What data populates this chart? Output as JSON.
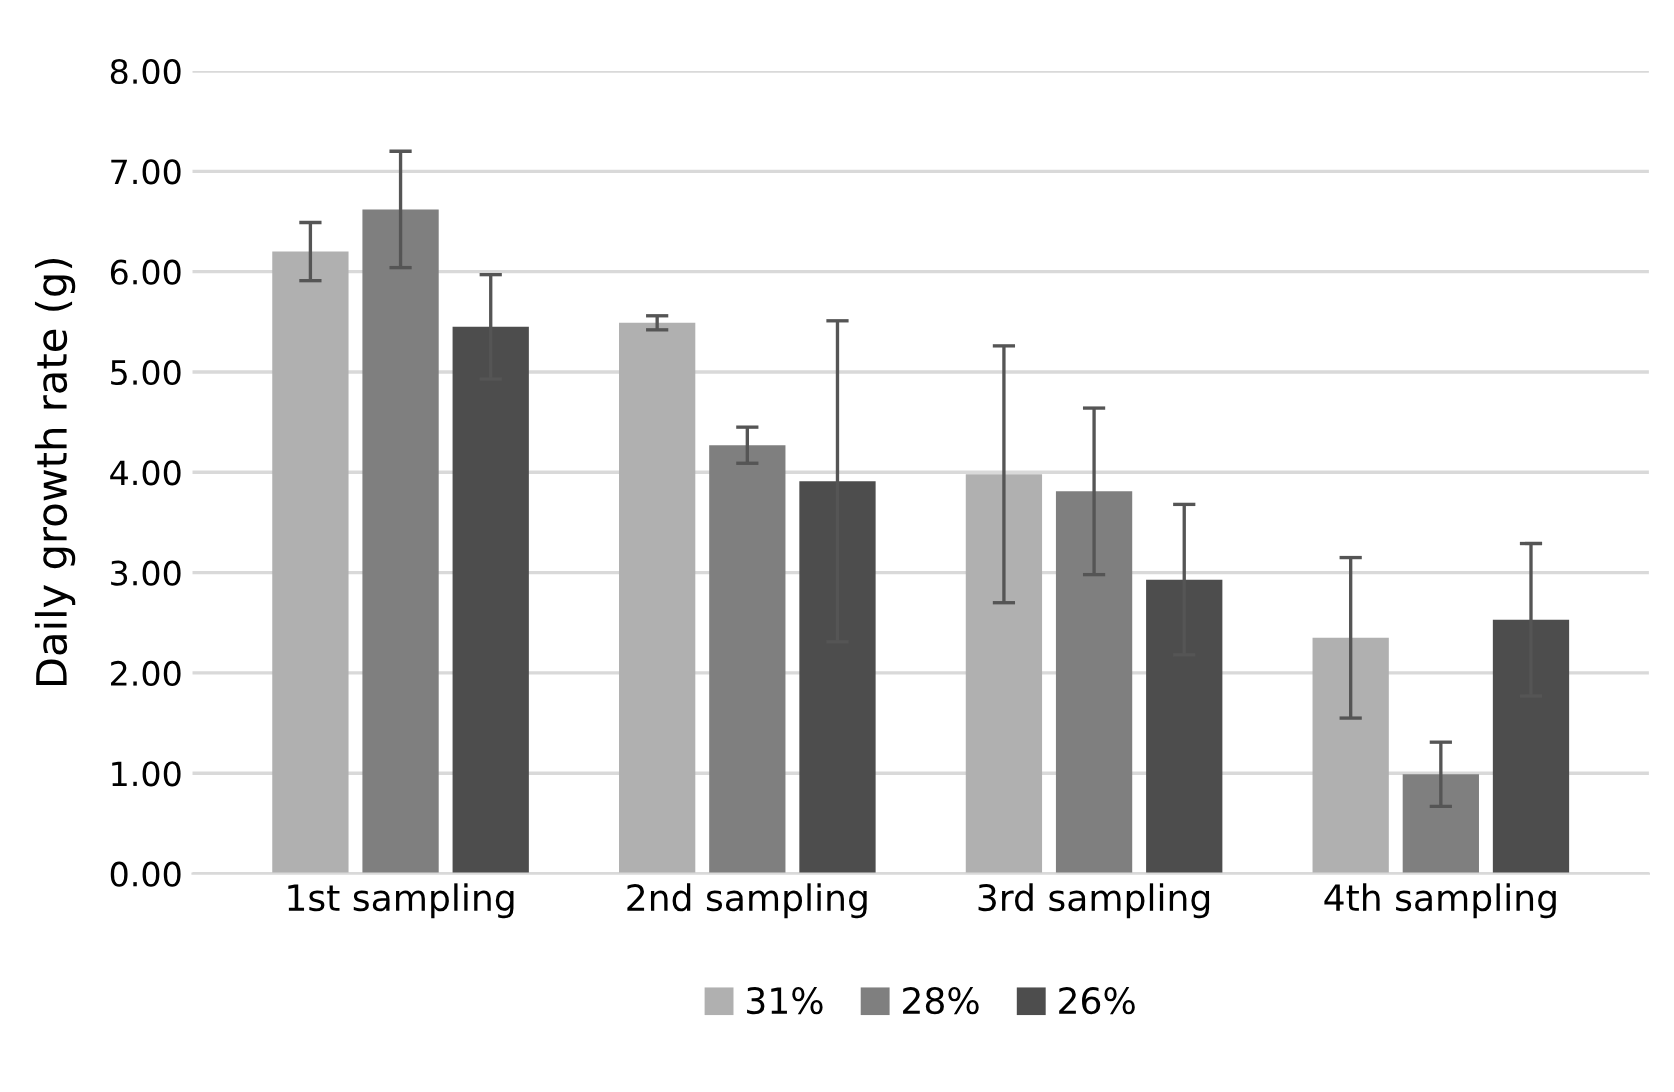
{
  "chart_data": {
    "type": "bar",
    "ylabel": "Daily growth rate (g)",
    "categories": [
      "1st sampling",
      "2nd sampling",
      "3rd sampling",
      "4th sampling"
    ],
    "series": [
      {
        "name": "31%",
        "color": "#b0b0b0",
        "values": [
          6.2,
          5.49,
          3.98,
          2.35
        ],
        "errors": [
          0.29,
          0.07,
          1.28,
          0.8
        ]
      },
      {
        "name": "28%",
        "color": "#7f7f7f",
        "values": [
          6.62,
          4.27,
          3.81,
          0.99
        ],
        "errors": [
          0.58,
          0.18,
          0.83,
          0.32
        ]
      },
      {
        "name": "26%",
        "color": "#4d4d4d",
        "values": [
          5.45,
          3.91,
          2.93,
          2.53
        ],
        "errors": [
          0.52,
          1.6,
          0.75,
          0.76
        ]
      }
    ],
    "ylim": [
      0,
      8
    ],
    "yticks": [
      {
        "value": 0,
        "label": "0.00"
      },
      {
        "value": 1,
        "label": "1.00"
      },
      {
        "value": 2,
        "label": "2.00"
      },
      {
        "value": 3,
        "label": "3.00"
      },
      {
        "value": 4,
        "label": "4.00"
      },
      {
        "value": 5,
        "label": "5.00"
      },
      {
        "value": 6,
        "label": "6.00"
      },
      {
        "value": 7,
        "label": "7.00"
      },
      {
        "value": 8,
        "label": "8.00"
      }
    ],
    "grid": "y",
    "legend": "bottom"
  }
}
